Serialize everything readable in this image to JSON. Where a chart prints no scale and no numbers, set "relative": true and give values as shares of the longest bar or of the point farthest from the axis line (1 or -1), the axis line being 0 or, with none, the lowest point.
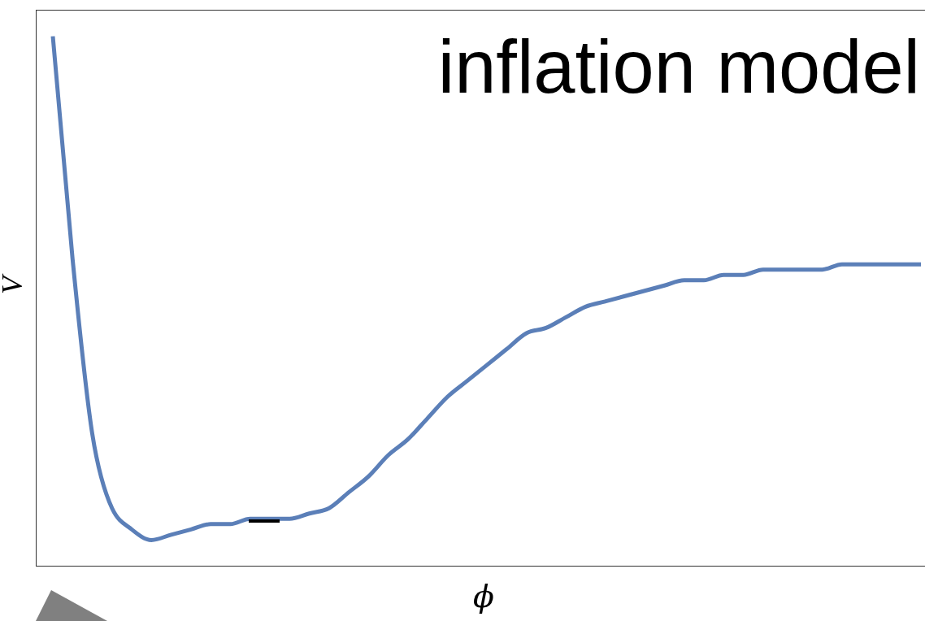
{
  "chart_data": {
    "type": "line",
    "title": "inflation model",
    "xlabel": "ϕ",
    "ylabel": "V",
    "relative": true,
    "color": "#5b7fb8",
    "marker": "none",
    "categories": [
      null,
      null,
      null,
      null,
      null,
      null,
      null,
      null,
      null,
      null,
      null,
      null,
      null,
      null,
      null,
      null,
      null,
      null,
      null,
      null,
      null,
      null,
      null,
      null,
      null,
      null,
      null,
      null,
      null,
      null,
      null,
      null,
      null,
      null,
      null,
      null,
      null,
      null,
      null,
      null,
      null,
      null,
      null,
      null,
      null
    ],
    "values": [
      1.0,
      0.58,
      0.25,
      0.11,
      0.07,
      0.05,
      0.06,
      0.07,
      0.08,
      0.08,
      0.09,
      0.09,
      0.09,
      0.1,
      0.11,
      0.14,
      0.17,
      0.21,
      0.24,
      0.28,
      0.32,
      0.35,
      0.38,
      0.41,
      0.44,
      0.45,
      0.47,
      0.49,
      0.5,
      0.51,
      0.52,
      0.53,
      0.54,
      0.54,
      0.55,
      0.55,
      0.56,
      0.56,
      0.56,
      0.56,
      0.57,
      0.57,
      0.57,
      0.57,
      0.57
    ]
  }
}
